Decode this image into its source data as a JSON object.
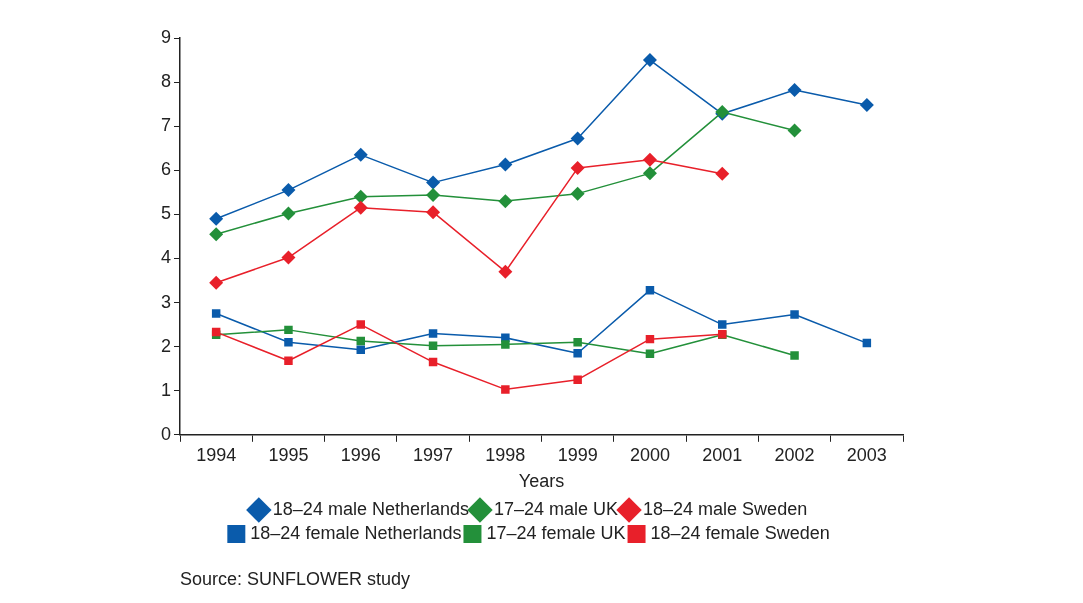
{
  "chart_data": {
    "type": "line",
    "xlabel": "Years",
    "categories": [
      "1994",
      "1995",
      "1996",
      "1997",
      "1998",
      "1999",
      "2000",
      "2001",
      "2002",
      "2003"
    ],
    "ylim": [
      0,
      9
    ],
    "yticks": [
      0,
      1,
      2,
      3,
      4,
      5,
      6,
      7,
      8,
      9
    ],
    "grid": false,
    "legend": "bottom",
    "annotations": [
      "Source: SUNFLOWER study"
    ],
    "series": [
      {
        "name": "18–24 male Netherlands",
        "color": "#0a5bab",
        "marker": "diamond",
        "values": [
          4.9,
          5.55,
          6.35,
          5.72,
          6.13,
          6.72,
          8.5,
          7.28,
          7.82,
          7.48
        ]
      },
      {
        "name": "17–24 male UK",
        "color": "#23903a",
        "marker": "diamond",
        "values": [
          4.55,
          5.02,
          5.4,
          5.44,
          5.3,
          5.47,
          5.93,
          7.32,
          6.9,
          null
        ]
      },
      {
        "name": "18–24 male Sweden",
        "color": "#e8202a",
        "marker": "diamond",
        "values": [
          3.45,
          4.02,
          5.15,
          5.05,
          3.7,
          6.05,
          6.24,
          5.92,
          null,
          null
        ]
      },
      {
        "name": "18–24 female Netherlands",
        "color": "#0a5bab",
        "marker": "square",
        "values": [
          2.75,
          2.1,
          1.93,
          2.3,
          2.2,
          1.85,
          3.28,
          2.5,
          2.73,
          2.08
        ]
      },
      {
        "name": "17–24 female UK",
        "color": "#23903a",
        "marker": "square",
        "values": [
          2.27,
          2.38,
          2.13,
          2.02,
          2.05,
          2.1,
          1.84,
          2.27,
          1.8,
          null
        ]
      },
      {
        "name": "18–24 female Sweden",
        "color": "#e8202a",
        "marker": "square",
        "values": [
          2.33,
          1.68,
          2.5,
          1.65,
          1.03,
          1.25,
          2.17,
          2.28,
          null,
          null
        ]
      }
    ]
  }
}
